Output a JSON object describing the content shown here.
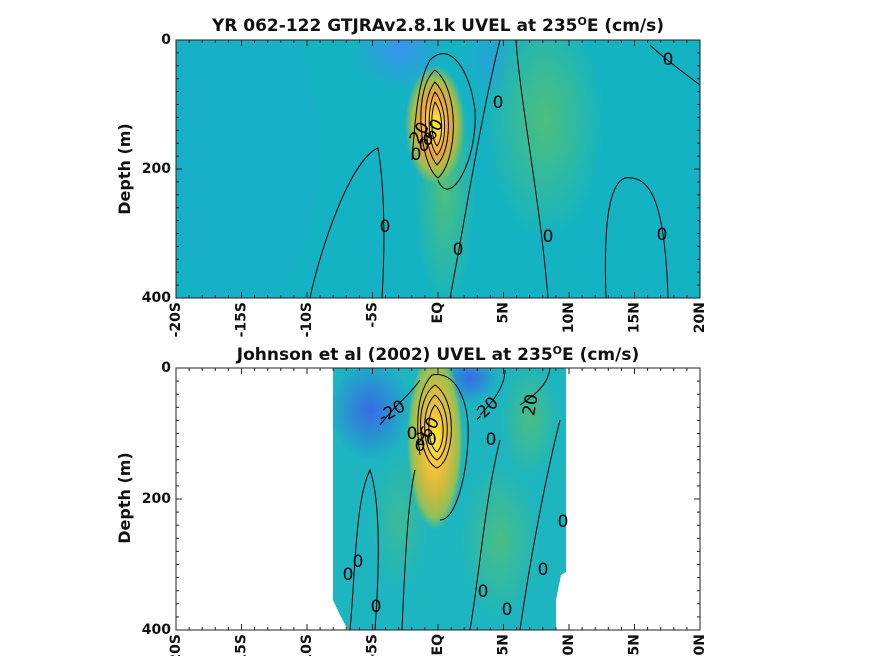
{
  "chart_data": [
    {
      "type": "heatmap",
      "title": "YR 062-122 GTJRAv2.8.1k UVEL at 235",
      "title_sup": "O",
      "title_tail": "E (cm/s)",
      "ylabel": "Depth (m)",
      "xlabel": "",
      "x_ticks": [
        "-20S",
        "-15S",
        "-10S",
        "-5S",
        "EQ",
        "5N",
        "10N",
        "15N",
        "20N"
      ],
      "y_ticks": [
        "0",
        "200",
        "400"
      ],
      "xlim": [
        -20,
        20
      ],
      "ylim": [
        0,
        400
      ],
      "y_inverted": true,
      "contour_labels": [
        "0",
        "0",
        "0",
        "0",
        "0",
        "0",
        "0",
        "0",
        "20",
        "60",
        "0"
      ],
      "features": [
        {
          "name": "EUC core",
          "lat": 0,
          "depth": 120,
          "value": 100
        },
        {
          "name": "surface westward flow",
          "lat": -1,
          "depth": 20,
          "value": -30
        }
      ]
    },
    {
      "type": "heatmap",
      "title": "Johnson et al (2002) UVEL at 235",
      "title_sup": "O",
      "title_tail": "E (cm/s)",
      "ylabel": "Depth (m)",
      "xlabel": "",
      "x_ticks": [
        "-20S",
        "-15S",
        "-10S",
        "-5S",
        "EQ",
        "5N",
        "10N",
        "15N",
        "20N"
      ],
      "y_ticks": [
        "0",
        "200",
        "400"
      ],
      "xlim": [
        -20,
        20
      ],
      "ylim": [
        0,
        400
      ],
      "y_inverted": true,
      "data_extent_lat": [
        -8,
        10
      ],
      "contour_labels": [
        "-20",
        "-20",
        "20",
        "0",
        "0",
        "0",
        "0",
        "0",
        "0",
        "0",
        "0",
        "0",
        "0",
        "60",
        "20"
      ],
      "features": [
        {
          "name": "EUC core",
          "lat": 0,
          "depth": 90,
          "value": 100
        },
        {
          "name": "SEC west",
          "lat": -5,
          "depth": 30,
          "value": -30
        },
        {
          "name": "SEC north",
          "lat": 2,
          "depth": 10,
          "value": -40
        }
      ]
    }
  ]
}
